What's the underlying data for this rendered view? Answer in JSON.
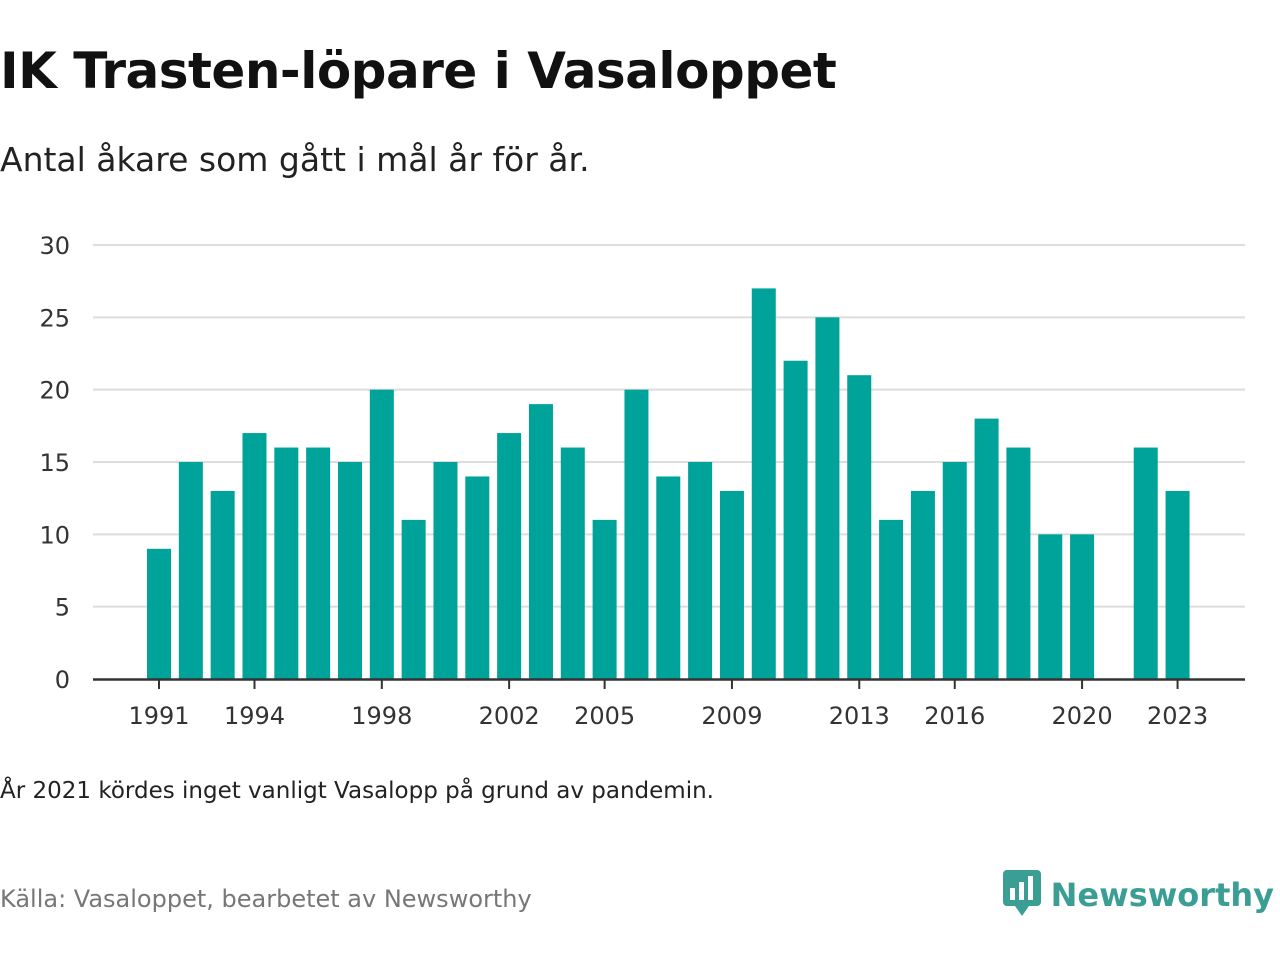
{
  "title": "IK Trasten-löpare i Vasaloppet",
  "subtitle": "Antal åkare som gått i mål år för år.",
  "note": "År 2021 kördes inget vanligt Vasalopp på grund av pandemin.",
  "source": "Källa: Vasaloppet, bearbetet av Newsworthy",
  "brand": {
    "name": "Newsworthy",
    "icon": "newsworthy-logo-icon"
  },
  "colors": {
    "bar": "#00a39a",
    "grid": "#dddddd",
    "axis": "#333333",
    "brand": "#3a9e94"
  },
  "chart_data": {
    "type": "bar",
    "title": "IK Trasten-löpare i Vasaloppet",
    "subtitle": "Antal åkare som gått i mål år för år.",
    "xlabel": "",
    "ylabel": "",
    "categories": [
      1991,
      1992,
      1993,
      1994,
      1995,
      1996,
      1997,
      1998,
      1999,
      2000,
      2001,
      2002,
      2003,
      2004,
      2005,
      2006,
      2007,
      2008,
      2009,
      2010,
      2011,
      2012,
      2013,
      2014,
      2015,
      2016,
      2017,
      2018,
      2019,
      2020,
      2021,
      2022,
      2023
    ],
    "values": [
      9,
      15,
      13,
      17,
      16,
      16,
      15,
      20,
      11,
      15,
      14,
      17,
      19,
      16,
      11,
      20,
      14,
      15,
      13,
      27,
      22,
      25,
      21,
      11,
      13,
      15,
      18,
      16,
      10,
      10,
      null,
      16,
      13
    ],
    "ylim": [
      0,
      30
    ],
    "yticks": [
      0,
      5,
      10,
      15,
      20,
      25,
      30
    ],
    "xticks": [
      1991,
      1994,
      1998,
      2002,
      2005,
      2009,
      2013,
      2016,
      2020,
      2023
    ],
    "grid": true,
    "legend": "none"
  }
}
